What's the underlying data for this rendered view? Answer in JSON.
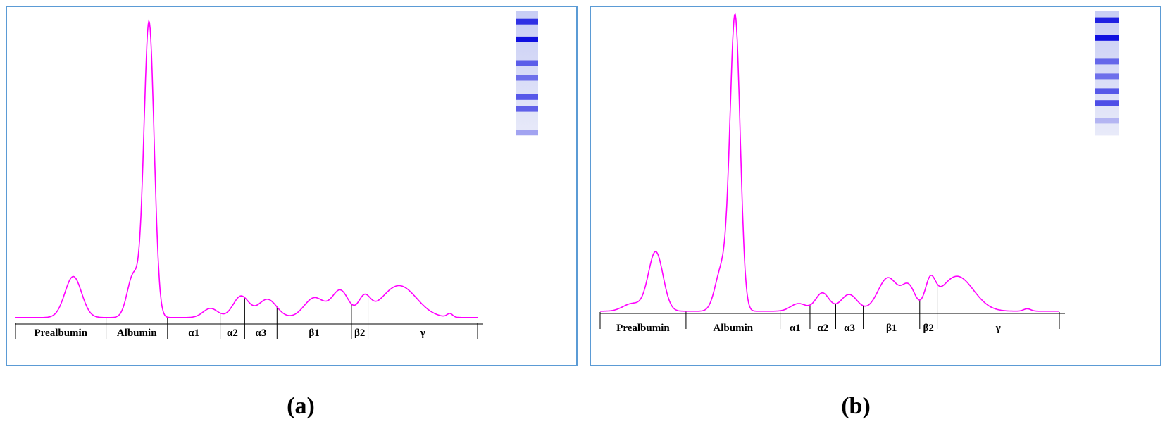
{
  "chart_data": [
    {
      "type": "line",
      "panel_label": "(a)",
      "fractions": [
        "Prealbumin",
        "Albumin",
        "α1",
        "α2",
        "α3",
        "β1",
        "β2",
        "γ"
      ],
      "boundaries": [
        0,
        0.196,
        0.329,
        0.443,
        0.496,
        0.566,
        0.727,
        0.763,
        1.0
      ],
      "peaks": [
        {
          "x": 0.125,
          "h": 0.135,
          "w": 0.018
        },
        {
          "x": 0.255,
          "h": 0.14,
          "w": 0.013
        },
        {
          "x": 0.289,
          "h": 0.97,
          "w": 0.011
        },
        {
          "x": 0.422,
          "h": 0.03,
          "w": 0.016
        },
        {
          "x": 0.488,
          "h": 0.07,
          "w": 0.017
        },
        {
          "x": 0.545,
          "h": 0.06,
          "w": 0.02
        },
        {
          "x": 0.647,
          "h": 0.065,
          "w": 0.022
        },
        {
          "x": 0.703,
          "h": 0.088,
          "w": 0.018
        },
        {
          "x": 0.755,
          "h": 0.06,
          "w": 0.013
        },
        {
          "x": 0.83,
          "h": 0.105,
          "w": 0.038
        },
        {
          "x": 0.94,
          "h": 0.012,
          "w": 0.006
        }
      ],
      "line_color": "#ff00ff",
      "gel_bands": [
        {
          "y": 0.035,
          "intensity": 0.8
        },
        {
          "y": 0.095,
          "intensity": 1.0
        },
        {
          "y": 0.175,
          "intensity": 0.55
        },
        {
          "y": 0.225,
          "intensity": 0.45
        },
        {
          "y": 0.29,
          "intensity": 0.6
        },
        {
          "y": 0.33,
          "intensity": 0.55
        },
        {
          "y": 0.41,
          "intensity": 0.2
        }
      ]
    },
    {
      "type": "line",
      "panel_label": "(b)",
      "fractions": [
        "Prealbumin",
        "Albumin",
        "α1",
        "α2",
        "α3",
        "β1",
        "β2",
        "γ"
      ],
      "boundaries": [
        0,
        0.187,
        0.392,
        0.457,
        0.513,
        0.573,
        0.696,
        0.734,
        1.0
      ],
      "peaks": [
        {
          "x": 0.07,
          "h": 0.025,
          "w": 0.02
        },
        {
          "x": 0.121,
          "h": 0.195,
          "w": 0.016
        },
        {
          "x": 0.265,
          "h": 0.14,
          "w": 0.014
        },
        {
          "x": 0.294,
          "h": 0.96,
          "w": 0.011
        },
        {
          "x": 0.432,
          "h": 0.025,
          "w": 0.017
        },
        {
          "x": 0.484,
          "h": 0.06,
          "w": 0.015
        },
        {
          "x": 0.542,
          "h": 0.055,
          "w": 0.018
        },
        {
          "x": 0.627,
          "h": 0.11,
          "w": 0.022
        },
        {
          "x": 0.672,
          "h": 0.075,
          "w": 0.014
        },
        {
          "x": 0.719,
          "h": 0.085,
          "w": 0.011
        },
        {
          "x": 0.777,
          "h": 0.115,
          "w": 0.036
        },
        {
          "x": 0.93,
          "h": 0.008,
          "w": 0.008
        }
      ],
      "line_color": "#ff00ff",
      "gel_bands": [
        {
          "y": 0.03,
          "intensity": 0.9
        },
        {
          "y": 0.09,
          "intensity": 1.0
        },
        {
          "y": 0.17,
          "intensity": 0.5
        },
        {
          "y": 0.22,
          "intensity": 0.45
        },
        {
          "y": 0.27,
          "intensity": 0.6
        },
        {
          "y": 0.31,
          "intensity": 0.65
        },
        {
          "y": 0.37,
          "intensity": 0.1
        }
      ]
    }
  ]
}
